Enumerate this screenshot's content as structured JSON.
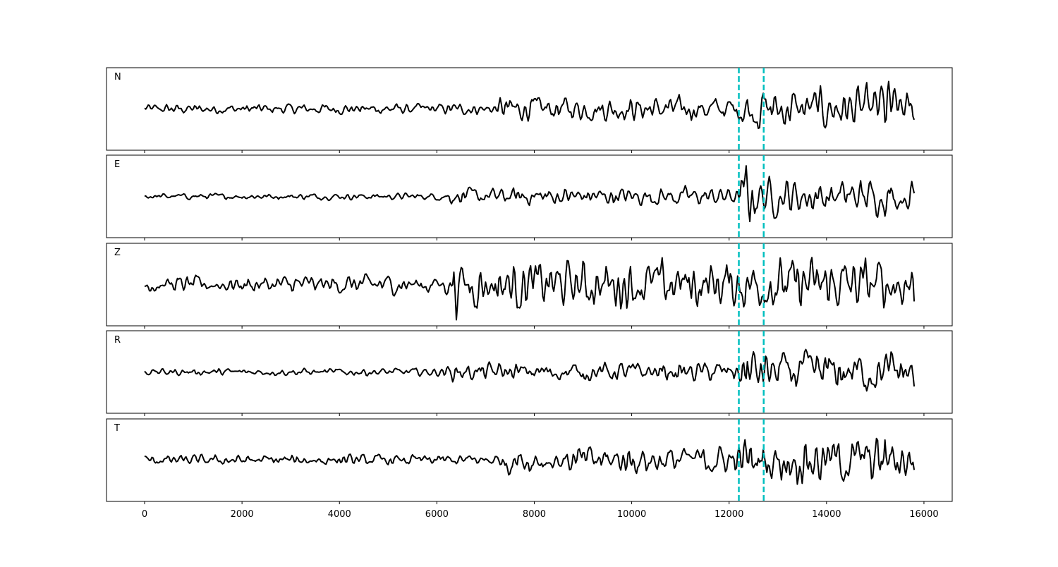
{
  "chart_data": {
    "type": "line",
    "xlim": [
      -782,
      16580
    ],
    "x_ticks": [
      0,
      2000,
      4000,
      6000,
      8000,
      10000,
      12000,
      14000,
      16000
    ],
    "x_tick_labels": [
      "0",
      "2000",
      "4000",
      "6000",
      "8000",
      "10000",
      "12000",
      "14000",
      "16000"
    ],
    "x_range_data": [
      0,
      15800
    ],
    "vertical_markers": {
      "x": [
        12200,
        12710
      ],
      "color": "#00BFBF",
      "style": "dashed"
    },
    "line_color": "#000000",
    "grid": false,
    "panels": [
      {
        "label": "N",
        "envelope": [
          [
            0,
            0.1
          ],
          [
            7200,
            0.12
          ],
          [
            7300,
            0.25
          ],
          [
            12200,
            0.25
          ],
          [
            12300,
            0.45
          ],
          [
            15000,
            0.45
          ],
          [
            15200,
            0.9
          ],
          [
            15400,
            0.45
          ],
          [
            15800,
            0.3
          ]
        ]
      },
      {
        "label": "E",
        "envelope": [
          [
            0,
            0.06
          ],
          [
            6000,
            0.07
          ],
          [
            6300,
            0.17
          ],
          [
            12200,
            0.2
          ],
          [
            12350,
            0.8
          ],
          [
            12600,
            0.4
          ],
          [
            15800,
            0.35
          ]
        ]
      },
      {
        "label": "Z",
        "envelope": [
          [
            0,
            0.17
          ],
          [
            4800,
            0.2
          ],
          [
            4900,
            0.35
          ],
          [
            5000,
            0.2
          ],
          [
            6300,
            0.22
          ],
          [
            6350,
            0.9
          ],
          [
            6500,
            0.5
          ],
          [
            15800,
            0.55
          ]
        ]
      },
      {
        "label": "R",
        "envelope": [
          [
            0,
            0.07
          ],
          [
            6000,
            0.08
          ],
          [
            6300,
            0.18
          ],
          [
            12200,
            0.22
          ],
          [
            12350,
            0.75
          ],
          [
            12600,
            0.45
          ],
          [
            15800,
            0.45
          ]
        ]
      },
      {
        "label": "T",
        "envelope": [
          [
            0,
            0.1
          ],
          [
            7300,
            0.12
          ],
          [
            7400,
            0.3
          ],
          [
            12200,
            0.3
          ],
          [
            12300,
            0.5
          ],
          [
            15000,
            0.5
          ],
          [
            15200,
            0.85
          ],
          [
            15400,
            0.5
          ],
          [
            15800,
            0.4
          ]
        ]
      }
    ]
  }
}
